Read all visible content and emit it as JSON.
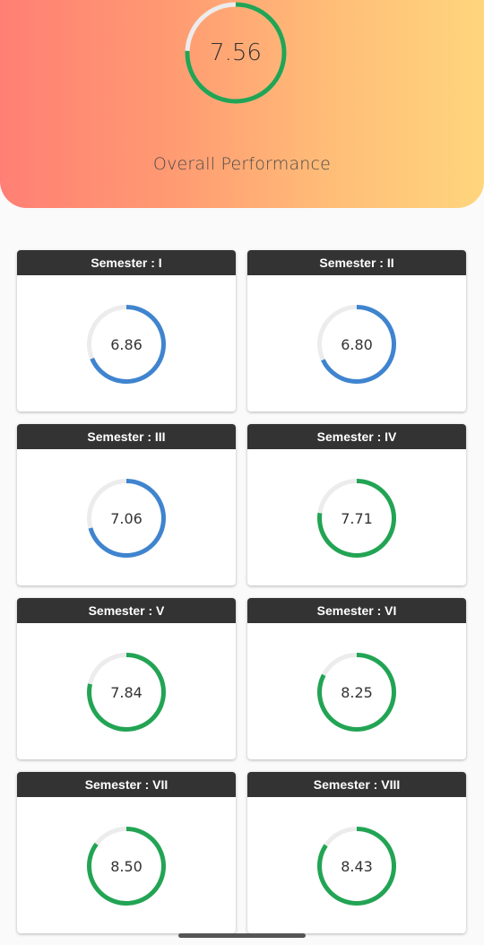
{
  "overall": {
    "value": "7.56",
    "score": 7.56,
    "label": "Overall Performance"
  },
  "max_score": 10,
  "colors": {
    "ring_track": "#ececec",
    "blue": "#3f84cf",
    "green": "#22a454",
    "header_gradient_start": "#ff7f74",
    "header_gradient_end": "#ffd57d"
  },
  "semesters": [
    {
      "title": "Semester : I",
      "value": "6.86",
      "score": 6.86,
      "color": "blue"
    },
    {
      "title": "Semester : II",
      "value": "6.80",
      "score": 6.8,
      "color": "blue"
    },
    {
      "title": "Semester : III",
      "value": "7.06",
      "score": 7.06,
      "color": "blue"
    },
    {
      "title": "Semester : IV",
      "value": "7.71",
      "score": 7.71,
      "color": "green"
    },
    {
      "title": "Semester : V",
      "value": "7.84",
      "score": 7.84,
      "color": "green"
    },
    {
      "title": "Semester : VI",
      "value": "8.25",
      "score": 8.25,
      "color": "green"
    },
    {
      "title": "Semester : VII",
      "value": "8.50",
      "score": 8.5,
      "color": "green"
    },
    {
      "title": "Semester : VIII",
      "value": "8.43",
      "score": 8.43,
      "color": "green"
    }
  ]
}
